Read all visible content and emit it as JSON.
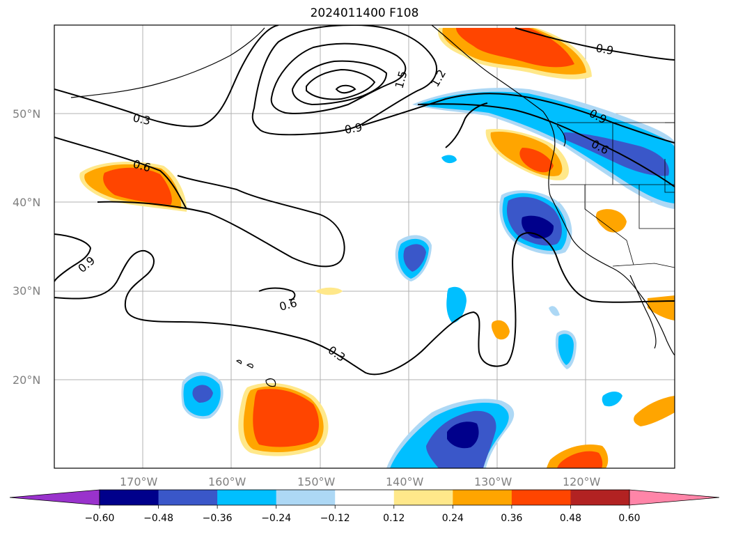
{
  "title": "2024011400 F108",
  "map": {
    "projection": "PlateCarree",
    "lon_range": [
      -180,
      -110
    ],
    "lat_range": [
      10,
      60
    ],
    "gridlines": true,
    "lon_labels": [
      "170°W",
      "160°W",
      "150°W",
      "140°W",
      "130°W",
      "120°W"
    ],
    "lat_labels": [
      "20°N",
      "30°N",
      "40°N",
      "50°N"
    ],
    "contour_labels": [
      "0.3",
      "0.6",
      "0.9",
      "1.5",
      "1.2",
      "0.9",
      "0.6",
      "0.9",
      "0.6",
      "0.9",
      "0.3",
      "0.3"
    ]
  },
  "colorbar": {
    "ticks": [
      "−0.60",
      "−0.48",
      "−0.36",
      "−0.24",
      "−0.12",
      "0.12",
      "0.24",
      "0.36",
      "0.48",
      "0.60"
    ],
    "colors": [
      "#9932cc",
      "#00008b",
      "#3a57c9",
      "#00bfff",
      "#add8f5",
      "#ffffff",
      "#ffe88a",
      "#ffa500",
      "#ff4500",
      "#b22222",
      "#ff85a8"
    ],
    "extend": "both"
  }
}
